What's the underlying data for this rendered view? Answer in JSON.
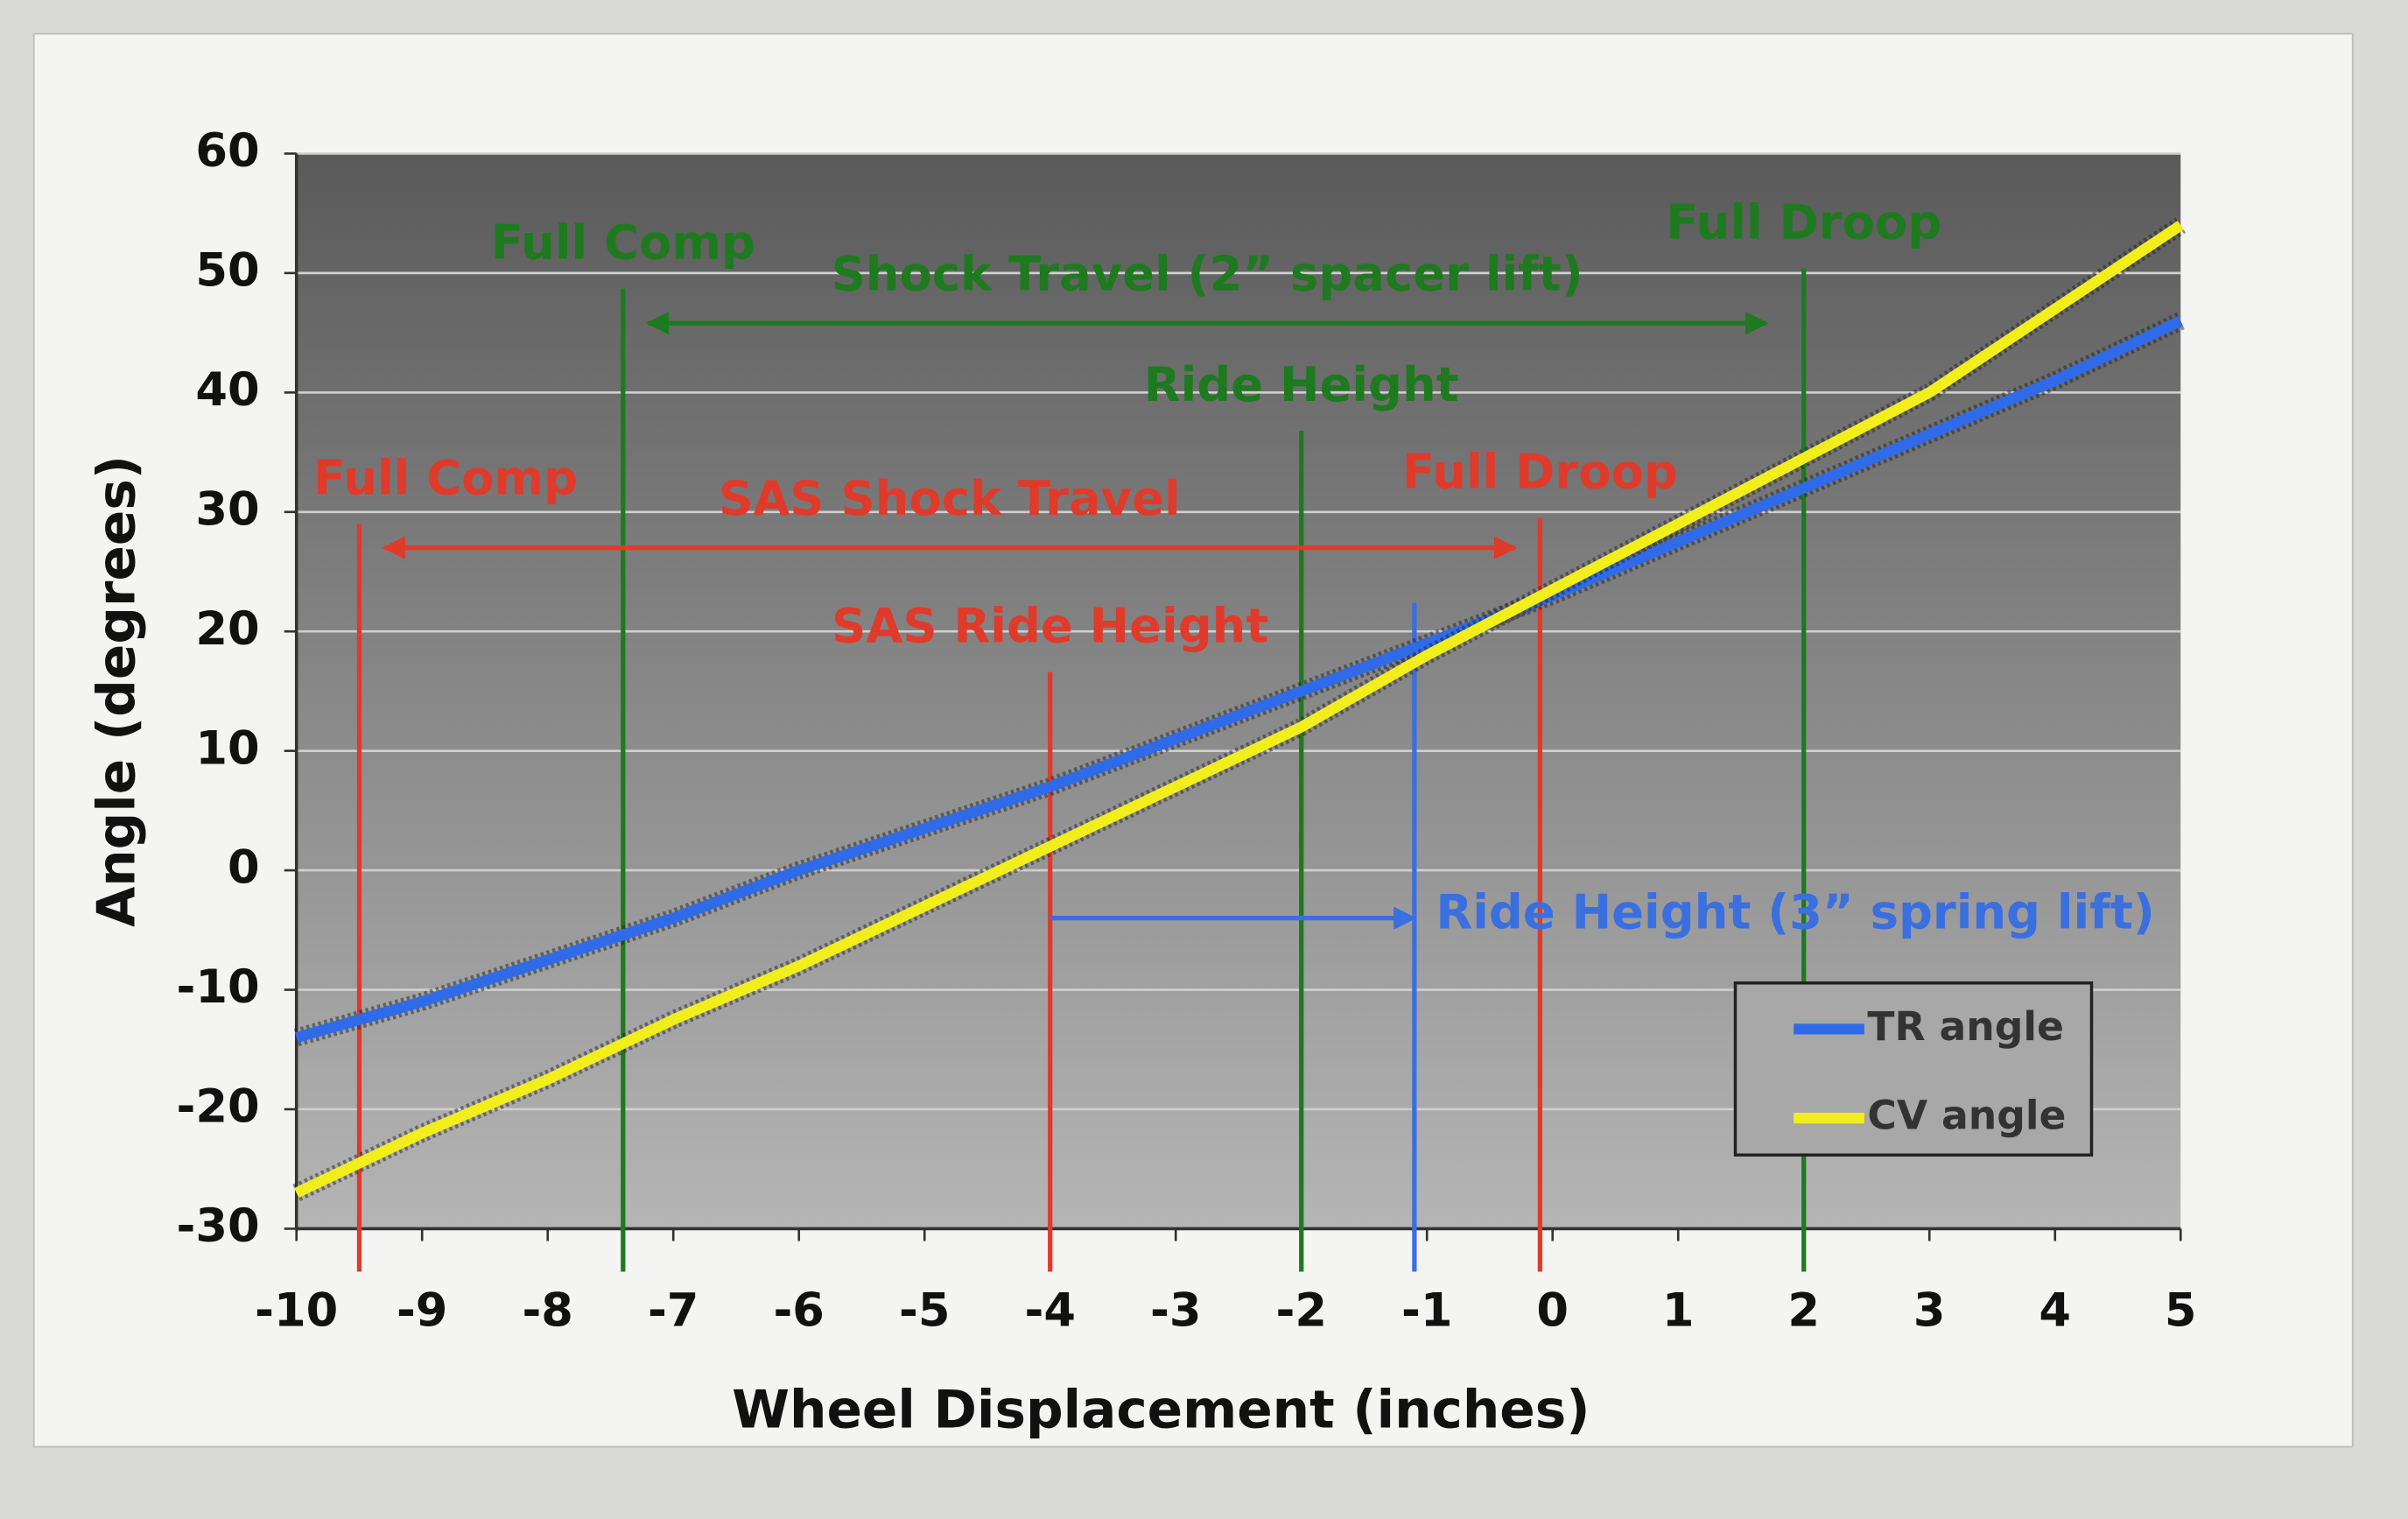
{
  "chart_data": {
    "type": "line",
    "xlabel": "Wheel Displacement (inches)",
    "ylabel": "Angle (degrees)",
    "x": [
      -10,
      -9,
      -8,
      -7,
      -6,
      -5,
      -4,
      -3,
      -2,
      -1,
      0,
      1,
      2,
      3,
      4,
      5
    ],
    "series": [
      {
        "name": "TR angle",
        "color": "#2f6be8",
        "values": [
          -14,
          -11,
          -7.5,
          -4,
          0,
          3.5,
          7,
          11,
          15,
          19,
          23,
          27.5,
          32,
          36.5,
          41,
          46
        ]
      },
      {
        "name": "CV angle",
        "color": "#f2ee1c",
        "values": [
          -27,
          -22,
          -17.5,
          -12.5,
          -8,
          -3,
          2,
          7,
          12,
          18,
          23.5,
          29,
          34.5,
          40,
          47,
          54
        ]
      }
    ],
    "xlim": [
      -10,
      5
    ],
    "ylim": [
      -30,
      60
    ],
    "xticks": [
      -10,
      -9,
      -8,
      -7,
      -6,
      -5,
      -4,
      -3,
      -2,
      -1,
      0,
      1,
      2,
      3,
      4,
      5
    ],
    "yticks": [
      -30,
      -20,
      -10,
      0,
      10,
      20,
      30,
      40,
      50,
      60
    ],
    "grid": true,
    "legend": "lower right",
    "vlines": [
      {
        "x": -7.4,
        "top": 48.7,
        "color": "#1e7a1e",
        "label": "Full Comp"
      },
      {
        "x": -2,
        "top": 36.8,
        "color": "#1e7a1e",
        "label": "Ride Height"
      },
      {
        "x": 2,
        "top": 50.4,
        "color": "#1e7a1e",
        "label": "Full Droop"
      },
      {
        "x": -9.5,
        "top": 29,
        "color": "#e03a2a",
        "label": "Full Comp"
      },
      {
        "x": -4,
        "top": 16.6,
        "color": "#e03a2a",
        "label": "SAS Ride Height"
      },
      {
        "x": -0.1,
        "top": 29.5,
        "color": "#e03a2a",
        "label": "Full Droop"
      },
      {
        "x": -1.1,
        "top": 22.4,
        "color": "#3a6fe0"
      }
    ],
    "arrows": [
      {
        "x": [
          1.7,
          -7.2
        ],
        "y": 45.8,
        "color": "#1e7a1e",
        "label": "Shock Travel (2” spacer lift)",
        "label_position": "above"
      },
      {
        "x": [
          -0.3,
          -9.3
        ],
        "y": 27,
        "color": "#e03a2a",
        "label": "SAS Shock Travel",
        "label_position": "above"
      },
      {
        "x": [
          -4,
          -1.1
        ],
        "y": -4,
        "color": "#3a6fe0",
        "label": "Ride Height (3” spring lift)",
        "label_position": "right"
      }
    ]
  }
}
